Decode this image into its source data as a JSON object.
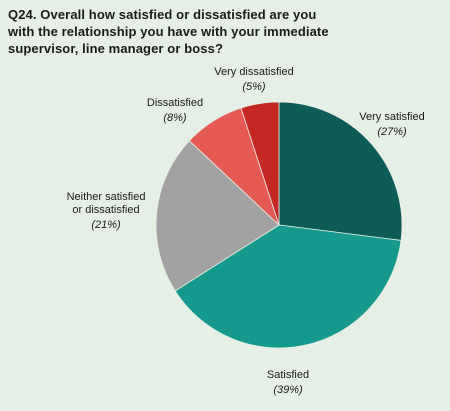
{
  "colors": {
    "background": "#e6efe6",
    "very_satisfied": "#0d5c57",
    "satisfied": "#15998c",
    "neither": "#a2a2a2",
    "dissatisfied": "#e65a55",
    "very_dissatisfied": "#c42824"
  },
  "chart_data": {
    "type": "pie",
    "title": "Q24. Overall how satisfied or dissatisfied are you with the relationship you have with your immediate supervisor, line manager or boss?",
    "slices": [
      {
        "label": [
          "Very satisfied"
        ],
        "value": 27,
        "pct_label": "(27%)",
        "color": "#0d5c57"
      },
      {
        "label": [
          "Satisfied"
        ],
        "value": 39,
        "pct_label": "(39%)",
        "color": "#15998c"
      },
      {
        "label": [
          "Neither satisfied",
          "or dissatisfied"
        ],
        "value": 21,
        "pct_label": "(21%)",
        "color": "#a2a2a2"
      },
      {
        "label": [
          "Dissatisfied"
        ],
        "value": 8,
        "pct_label": "(8%)",
        "color": "#e65a55"
      },
      {
        "label": [
          "Very dissatisfied"
        ],
        "value": 5,
        "pct_label": "(5%)",
        "color": "#c42824"
      }
    ]
  }
}
